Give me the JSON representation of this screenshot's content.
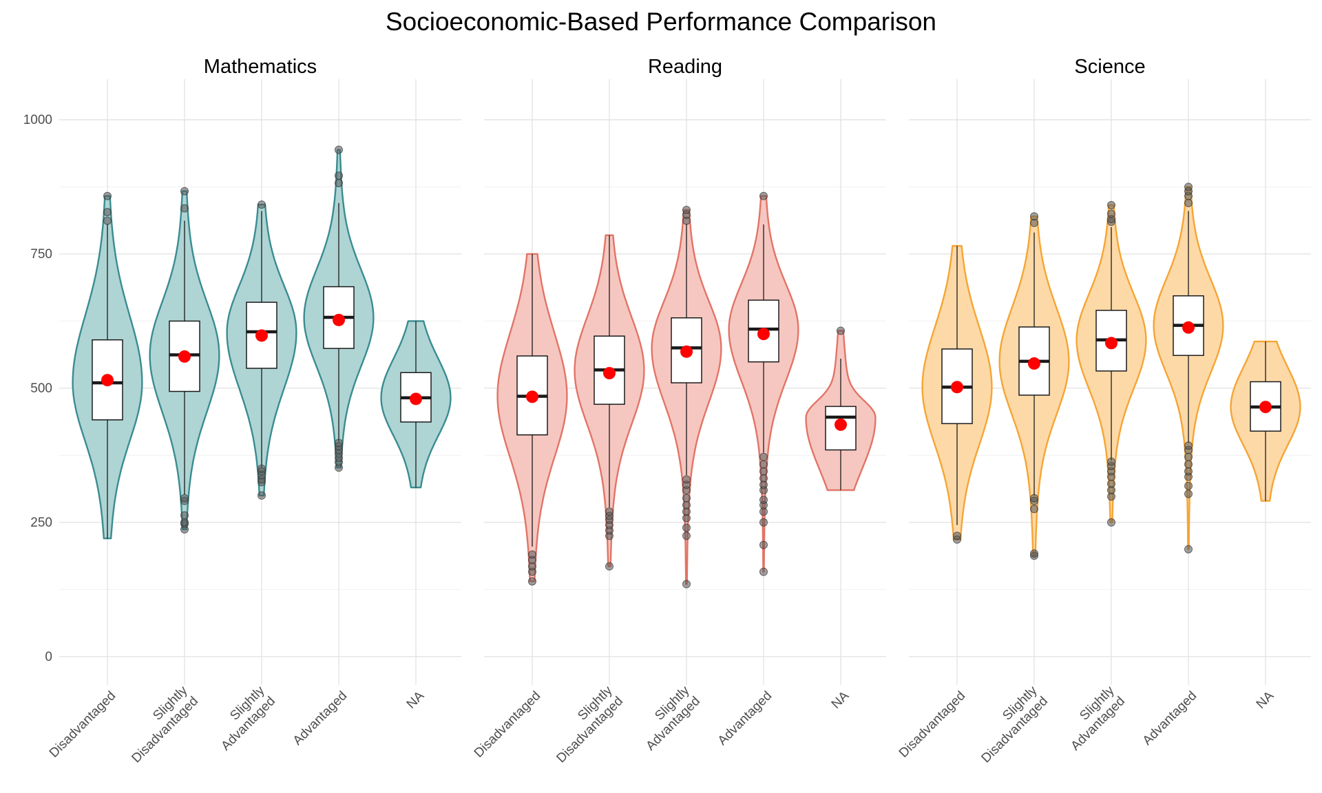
{
  "chart_data": {
    "type": "violin",
    "title": "Socioeconomic-Based Performance Comparison",
    "xlabel": "",
    "ylabel": "",
    "ylim": [
      -40,
      1050
    ],
    "y_ticks": [
      0,
      250,
      500,
      750,
      1000
    ],
    "grid": true,
    "legend": "none",
    "categories": [
      "Disadvantaged",
      "Slightly Disadvantaged",
      "Slightly Advantaged",
      "Advantaged",
      "NA"
    ],
    "category_labels": [
      [
        "Disadvantaged"
      ],
      [
        "Slightly",
        "Disadvantaged"
      ],
      [
        "Slightly",
        "Advantaged"
      ],
      [
        "Advantaged"
      ],
      [
        "NA"
      ]
    ],
    "mean_marker_color": "#ff0000",
    "outlier_color": "#555555",
    "facets": [
      {
        "name": "Mathematics",
        "fill": "#afd4d4",
        "stroke": "#3a8c90",
        "groups": [
          {
            "category": "Disadvantaged",
            "q1": 441,
            "median": 510,
            "q3": 590,
            "whisker_low": 220,
            "whisker_high": 806,
            "mean": 515,
            "min": 220,
            "max": 858,
            "outliers": [
              812,
              828,
              858
            ]
          },
          {
            "category": "Slightly Disadvantaged",
            "q1": 494,
            "median": 562,
            "q3": 625,
            "whisker_low": 302,
            "whisker_high": 812,
            "mean": 559,
            "min": 237,
            "max": 867,
            "outliers": [
              237,
              247,
              250,
              263,
              290,
              295,
              835,
              867
            ]
          },
          {
            "category": "Slightly Advantaged",
            "q1": 537,
            "median": 605,
            "q3": 660,
            "whisker_low": 352,
            "whisker_high": 830,
            "mean": 598,
            "min": 300,
            "max": 842,
            "outliers": [
              300,
              325,
              330,
              338,
              345,
              350,
              842
            ]
          },
          {
            "category": "Advantaged",
            "q1": 574,
            "median": 632,
            "q3": 689,
            "whisker_low": 400,
            "whisker_high": 845,
            "mean": 627,
            "min": 352,
            "max": 944,
            "outliers": [
              352,
              362,
              370,
              378,
              385,
              392,
              398,
              882,
              896,
              944
            ]
          },
          {
            "category": "NA",
            "q1": 437,
            "median": 482,
            "q3": 529,
            "whisker_low": 315,
            "whisker_high": 625,
            "mean": 480,
            "min": 315,
            "max": 625,
            "outliers": []
          }
        ]
      },
      {
        "name": "Reading",
        "fill": "#f6c7c1",
        "stroke": "#e27466",
        "groups": [
          {
            "category": "Disadvantaged",
            "q1": 413,
            "median": 485,
            "q3": 560,
            "whisker_low": 205,
            "whisker_high": 750,
            "mean": 484,
            "min": 140,
            "max": 750,
            "outliers": [
              140,
              158,
              168,
              180,
              190
            ]
          },
          {
            "category": "Slightly Disadvantaged",
            "q1": 470,
            "median": 534,
            "q3": 597,
            "whisker_low": 278,
            "whisker_high": 785,
            "mean": 528,
            "min": 168,
            "max": 785,
            "outliers": [
              168,
              225,
              235,
              245,
              255,
              262,
              270
            ]
          },
          {
            "category": "Slightly Advantaged",
            "q1": 510,
            "median": 575,
            "q3": 631,
            "whisker_low": 338,
            "whisker_high": 806,
            "mean": 568,
            "min": 135,
            "max": 832,
            "outliers": [
              135,
              225,
              240,
              258,
              270,
              282,
              295,
              310,
              320,
              330,
              812,
              823,
              832
            ]
          },
          {
            "category": "Advantaged",
            "q1": 549,
            "median": 610,
            "q3": 664,
            "whisker_low": 380,
            "whisker_high": 805,
            "mean": 601,
            "min": 158,
            "max": 858,
            "outliers": [
              158,
              208,
              250,
              270,
              282,
              292,
              310,
              320,
              332,
              345,
              358,
              372,
              858
            ]
          },
          {
            "category": "NA",
            "q1": 385,
            "median": 446,
            "q3": 466,
            "whisker_low": 310,
            "whisker_high": 555,
            "mean": 432,
            "min": 310,
            "max": 607,
            "outliers": [
              607
            ]
          }
        ]
      },
      {
        "name": "Science",
        "fill": "#fdd9a8",
        "stroke": "#f5a534",
        "groups": [
          {
            "category": "Disadvantaged",
            "q1": 434,
            "median": 502,
            "q3": 573,
            "whisker_low": 245,
            "whisker_high": 765,
            "mean": 502,
            "min": 218,
            "max": 765,
            "outliers": [
              218,
              225
            ]
          },
          {
            "category": "Slightly Disadvantaged",
            "q1": 487,
            "median": 550,
            "q3": 614,
            "whisker_low": 300,
            "whisker_high": 790,
            "mean": 546,
            "min": 188,
            "max": 820,
            "outliers": [
              188,
              192,
              275,
              290,
              295,
              808,
              820
            ]
          },
          {
            "category": "Slightly Advantaged",
            "q1": 532,
            "median": 590,
            "q3": 645,
            "whisker_low": 365,
            "whisker_high": 800,
            "mean": 584,
            "min": 250,
            "max": 841,
            "outliers": [
              250,
              298,
              310,
              322,
              335,
              345,
              355,
              363,
              810,
              815,
              825,
              841
            ]
          },
          {
            "category": "Advantaged",
            "q1": 561,
            "median": 617,
            "q3": 672,
            "whisker_low": 398,
            "whisker_high": 830,
            "mean": 613,
            "min": 200,
            "max": 875,
            "outliers": [
              200,
              303,
              318,
              335,
              345,
              358,
              372,
              385,
              393,
              845,
              858,
              867,
              875
            ]
          },
          {
            "category": "NA",
            "q1": 420,
            "median": 465,
            "q3": 512,
            "whisker_low": 290,
            "whisker_high": 587,
            "mean": 465,
            "min": 290,
            "max": 587,
            "outliers": []
          }
        ]
      }
    ]
  }
}
